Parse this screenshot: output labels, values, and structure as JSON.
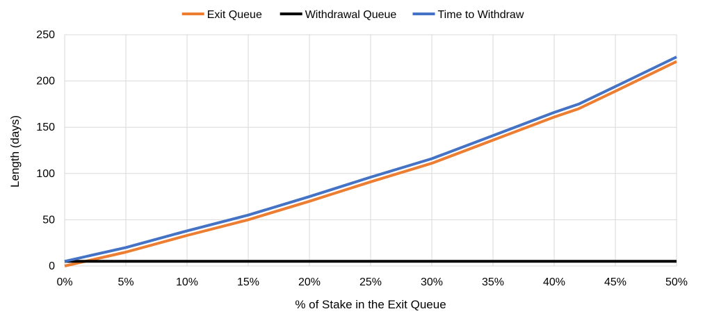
{
  "chart_data": {
    "type": "line",
    "title": "",
    "xlabel": "% of Stake in the Exit Queue",
    "ylabel": "Length (days)",
    "xlim": [
      0,
      50
    ],
    "ylim": [
      0,
      250
    ],
    "x_ticks": [
      0,
      5,
      10,
      15,
      20,
      25,
      30,
      35,
      40,
      45,
      50
    ],
    "x_tick_labels": [
      "0%",
      "5%",
      "10%",
      "15%",
      "20%",
      "25%",
      "30%",
      "35%",
      "40%",
      "45%",
      "50%"
    ],
    "y_ticks": [
      0,
      50,
      100,
      150,
      200,
      250
    ],
    "y_tick_labels": [
      "0",
      "50",
      "100",
      "150",
      "200",
      "250"
    ],
    "grid": true,
    "legend_position": "top",
    "series": [
      {
        "name": "Exit Queue",
        "color": "#ED7D31",
        "x": [
          0,
          5,
          10,
          15,
          20,
          25,
          30,
          35,
          40,
          42,
          45,
          50
        ],
        "values": [
          0,
          15,
          33,
          50,
          70,
          91,
          111,
          136,
          161,
          170,
          189,
          221
        ]
      },
      {
        "name": "Withdrawal Queue",
        "color": "#000000",
        "x": [
          0,
          50
        ],
        "values": [
          5,
          5
        ]
      },
      {
        "name": "Time to Withdraw",
        "color": "#4472C4",
        "x": [
          0,
          5,
          10,
          15,
          20,
          25,
          30,
          35,
          40,
          42,
          45,
          50
        ],
        "values": [
          5,
          20,
          38,
          55,
          75,
          96,
          116,
          141,
          166,
          175,
          194,
          226
        ]
      }
    ]
  }
}
